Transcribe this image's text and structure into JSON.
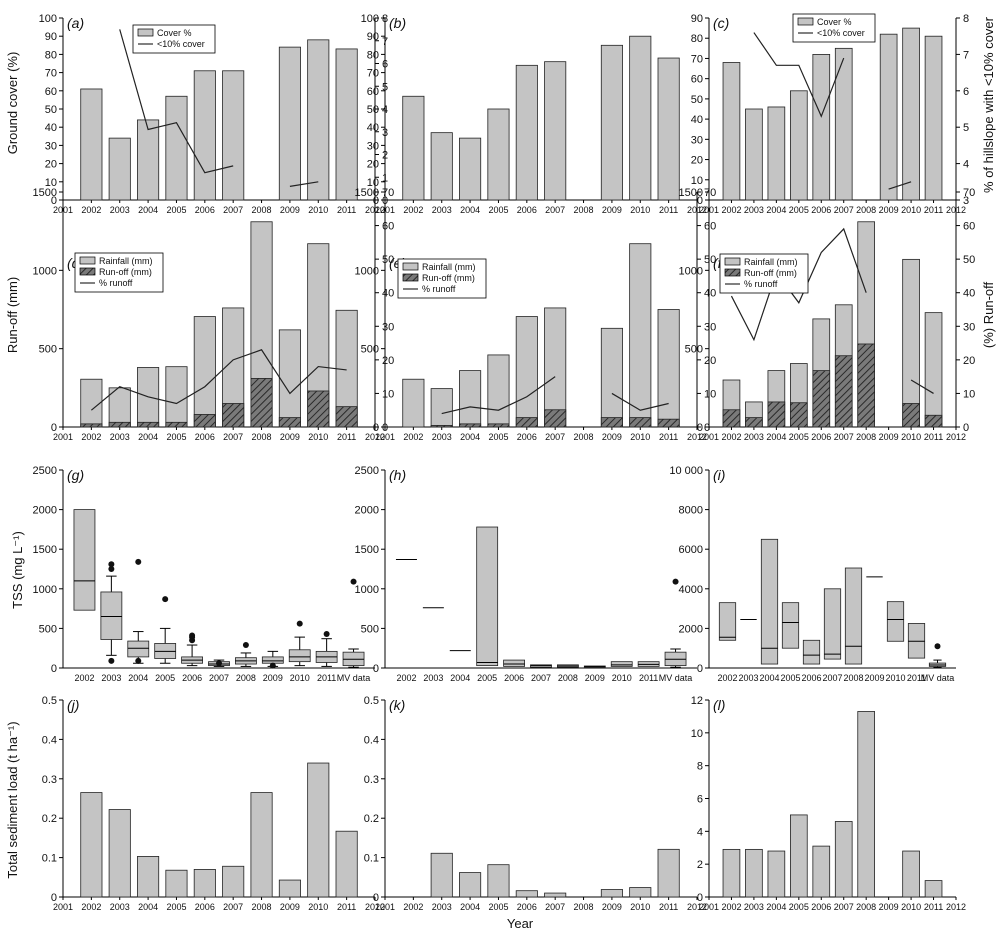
{
  "figure": {
    "xlabel_bottom": "Year",
    "row_ylabels": [
      "Ground cover (%)",
      "Run-off (mm)",
      "TSS (mg L⁻¹)",
      "Total sediment load (t ha⁻¹)"
    ],
    "row1_right_ylabel": "% of hillslope with <10% cover",
    "row2_right_ylabel": "(%) Run-off"
  },
  "colors": {
    "bar_fill": "#c4c4c4",
    "bar_stroke": "#222222",
    "runoff_fill": "#777777",
    "line": "#222222",
    "outlier": "#111111"
  },
  "chart_data": [
    {
      "panel": "(a)",
      "type": "bar",
      "xlim": [
        2001,
        2012
      ],
      "x_ticks": [
        "2001",
        "2002",
        "2003",
        "2004",
        "2005",
        "2006",
        "2007",
        "2008",
        "2009",
        "2010",
        "2011",
        "2012"
      ],
      "ylim": [
        0,
        100
      ],
      "y_ticks": [
        "0",
        "10",
        "20",
        "30",
        "40",
        "50",
        "60",
        "70",
        "80",
        "90",
        "100"
      ],
      "y2lim": [
        0,
        8
      ],
      "y2_ticks": [
        "0",
        "1",
        "2",
        "3",
        "4",
        "5",
        "6",
        "7",
        "8"
      ],
      "legend": [
        {
          "label": "Cover %",
          "kind": "bar"
        },
        {
          "label": "<10% cover",
          "kind": "line"
        }
      ],
      "categories": [
        2002,
        2003,
        2004,
        2005,
        2006,
        2007,
        2009,
        2010,
        2011
      ],
      "values": [
        61,
        34,
        44,
        57,
        71,
        71,
        84,
        88,
        83
      ],
      "line_segments": [
        {
          "x": [
            2003,
            2004,
            2005,
            2006,
            2007
          ],
          "y": [
            7.5,
            3.1,
            3.4,
            1.2,
            1.5
          ]
        },
        {
          "x": [
            2009,
            2010
          ],
          "y": [
            0.6,
            0.8
          ]
        }
      ]
    },
    {
      "panel": "(b)",
      "type": "bar",
      "xlim": [
        2001,
        2012
      ],
      "x_ticks": [
        "2001",
        "2002",
        "2003",
        "2004",
        "2005",
        "2006",
        "2007",
        "2008",
        "2009",
        "2010",
        "2011",
        "2012"
      ],
      "ylim": [
        0,
        100
      ],
      "y_ticks": [
        "0",
        "10",
        "20",
        "30",
        "40",
        "50",
        "60",
        "70",
        "80",
        "90",
        "100"
      ],
      "categories": [
        2002,
        2003,
        2004,
        2005,
        2006,
        2007,
        2009,
        2010,
        2011
      ],
      "values": [
        57,
        37,
        34,
        50,
        74,
        76,
        85,
        90,
        78
      ]
    },
    {
      "panel": "(c)",
      "type": "bar",
      "xlim": [
        2001,
        2012
      ],
      "x_ticks": [
        "2001",
        "2002",
        "2003",
        "2004",
        "2005",
        "2006",
        "2007",
        "2008",
        "2009",
        "2010",
        "2011",
        "2012"
      ],
      "ylim": [
        0,
        90
      ],
      "y_ticks": [
        "0",
        "10",
        "20",
        "30",
        "40",
        "50",
        "60",
        "70",
        "80",
        "90"
      ],
      "y2lim": [
        3,
        8
      ],
      "y2_ticks": [
        "3",
        "4",
        "5",
        "6",
        "7",
        "8"
      ],
      "legend": [
        {
          "label": "Cover %",
          "kind": "bar"
        },
        {
          "label": "<10% cover",
          "kind": "line"
        }
      ],
      "categories": [
        2002,
        2003,
        2004,
        2005,
        2006,
        2007,
        2009,
        2010,
        2011
      ],
      "values": [
        68,
        45,
        46,
        54,
        72,
        75,
        82,
        85,
        81
      ],
      "line_segments": [
        {
          "x": [
            2003,
            2004,
            2005,
            2006,
            2007
          ],
          "y": [
            7.6,
            6.7,
            6.7,
            5.3,
            6.9
          ]
        },
        {
          "x": [
            2009,
            2010
          ],
          "y": [
            3.3,
            3.5
          ]
        }
      ]
    },
    {
      "panel": "(d)",
      "type": "bar",
      "xlim": [
        2001,
        2012
      ],
      "x_ticks": [
        "2001",
        "2002",
        "2003",
        "2004",
        "2005",
        "2006",
        "2007",
        "2008",
        "2009",
        "2010",
        "2011",
        "2012"
      ],
      "ylim": [
        0,
        1500
      ],
      "y_ticks": [
        "0",
        "500",
        "1000",
        "1500"
      ],
      "y2lim": [
        0,
        70
      ],
      "y2_ticks": [
        "0",
        "10",
        "20",
        "30",
        "40",
        "50",
        "60",
        "70"
      ],
      "legend": [
        {
          "label": "Rainfall (mm)",
          "kind": "bar"
        },
        {
          "label": "Run-off (mm)",
          "kind": "hatch"
        },
        {
          "label": "% runoff",
          "kind": "line"
        }
      ],
      "categories": [
        2002,
        2003,
        2004,
        2005,
        2006,
        2007,
        2008,
        2009,
        2010,
        2011
      ],
      "series": [
        {
          "name": "Rainfall (mm)",
          "values": [
            305,
            250,
            380,
            385,
            705,
            760,
            1310,
            620,
            1170,
            745
          ]
        },
        {
          "name": "Run-off (mm)",
          "values": [
            20,
            30,
            30,
            30,
            80,
            150,
            310,
            60,
            230,
            130
          ]
        }
      ],
      "line_segments": [
        {
          "x": [
            2002,
            2003,
            2004,
            2005,
            2006,
            2007,
            2008,
            2009,
            2010,
            2011
          ],
          "y": [
            5,
            12,
            9,
            7,
            12,
            20,
            23,
            10,
            18,
            17
          ]
        }
      ]
    },
    {
      "panel": "(e)",
      "type": "bar",
      "xlim": [
        2001,
        2012
      ],
      "x_ticks": [
        "2001",
        "2002",
        "2003",
        "2004",
        "2005",
        "2006",
        "2007",
        "2008",
        "2009",
        "2010",
        "2011",
        "2012"
      ],
      "ylim": [
        0,
        1500
      ],
      "y_ticks": [
        "0",
        "500",
        "1000",
        "1500"
      ],
      "y2lim": [
        0,
        70
      ],
      "y2_ticks": [
        "0",
        "10",
        "20",
        "30",
        "40",
        "50",
        "60",
        "70"
      ],
      "legend": [
        {
          "label": "Rainfall (mm)",
          "kind": "bar"
        },
        {
          "label": "Run-off (mm)",
          "kind": "hatch"
        },
        {
          "label": "% runoff",
          "kind": "line"
        }
      ],
      "categories": [
        2002,
        2003,
        2004,
        2005,
        2006,
        2007,
        2009,
        2010,
        2011
      ],
      "series": [
        {
          "name": "Rainfall (mm)",
          "values": [
            305,
            245,
            360,
            460,
            705,
            760,
            630,
            1170,
            750
          ]
        },
        {
          "name": "Run-off (mm)",
          "values": [
            0,
            10,
            20,
            20,
            60,
            110,
            60,
            60,
            50
          ]
        }
      ],
      "line_segments": [
        {
          "x": [
            2003,
            2004,
            2005,
            2006,
            2007
          ],
          "y": [
            4,
            6,
            5,
            9,
            15
          ]
        },
        {
          "x": [
            2009,
            2010,
            2011
          ],
          "y": [
            10,
            5,
            7
          ]
        }
      ]
    },
    {
      "panel": "(f)",
      "type": "bar",
      "xlim": [
        2001,
        2012
      ],
      "x_ticks": [
        "2001",
        "2002",
        "2003",
        "2004",
        "2005",
        "2006",
        "2007",
        "2008",
        "2009",
        "2010",
        "2011",
        "2012"
      ],
      "ylim": [
        0,
        1500
      ],
      "y_ticks": [
        "0",
        "500",
        "1000",
        "1500"
      ],
      "y2lim": [
        0,
        70
      ],
      "y2_ticks": [
        "0",
        "10",
        "20",
        "30",
        "40",
        "50",
        "60",
        "70"
      ],
      "legend": [
        {
          "label": "Rainfall (mm)",
          "kind": "bar"
        },
        {
          "label": "Run-off (mm)",
          "kind": "hatch"
        },
        {
          "label": "% runoff",
          "kind": "line"
        }
      ],
      "categories": [
        2002,
        2003,
        2004,
        2005,
        2006,
        2007,
        2008,
        2010,
        2011
      ],
      "series": [
        {
          "name": "Rainfall (mm)",
          "values": [
            300,
            160,
            360,
            405,
            690,
            780,
            1310,
            1070,
            730
          ]
        },
        {
          "name": "Run-off (mm)",
          "values": [
            110,
            60,
            160,
            155,
            360,
            455,
            530,
            150,
            75
          ]
        }
      ],
      "line_segments": [
        {
          "x": [
            2002,
            2003,
            2004,
            2005,
            2006,
            2007,
            2008
          ],
          "y": [
            39,
            26,
            46,
            37,
            52,
            59,
            40
          ]
        },
        {
          "x": [
            2010,
            2011
          ],
          "y": [
            14,
            10
          ]
        }
      ]
    },
    {
      "panel": "(g)",
      "type": "box",
      "categories": [
        "2002",
        "2003",
        "2004",
        "2005",
        "2006",
        "2007",
        "2008",
        "2009",
        "2010",
        "2011",
        "MV data"
      ],
      "ylim": [
        0,
        2500
      ],
      "y_ticks": [
        "0",
        "500",
        "1000",
        "1500",
        "2000",
        "2500"
      ],
      "boxes": [
        {
          "q1": 730,
          "med": 1100,
          "q3": 2000,
          "whisk": null,
          "out": []
        },
        {
          "q1": 360,
          "med": 650,
          "q3": 960,
          "whisk": [
            160,
            1160
          ],
          "out": [
            90,
            1250,
            1310
          ]
        },
        {
          "q1": 140,
          "med": 250,
          "q3": 340,
          "whisk": [
            60,
            460
          ],
          "out": [
            90,
            1340
          ]
        },
        {
          "q1": 120,
          "med": 210,
          "q3": 310,
          "whisk": [
            60,
            500
          ],
          "out": [
            870
          ]
        },
        {
          "q1": 60,
          "med": 100,
          "q3": 140,
          "whisk": [
            30,
            290
          ],
          "out": [
            350,
            390,
            410
          ]
        },
        {
          "q1": 30,
          "med": 50,
          "q3": 80,
          "whisk": [
            20,
            100
          ],
          "out": [
            60
          ]
        },
        {
          "q1": 50,
          "med": 90,
          "q3": 130,
          "whisk": [
            20,
            190
          ],
          "out": [
            290
          ]
        },
        {
          "q1": 60,
          "med": 90,
          "q3": 140,
          "whisk": [
            20,
            210
          ],
          "out": [
            30
          ]
        },
        {
          "q1": 80,
          "med": 140,
          "q3": 230,
          "whisk": [
            30,
            390
          ],
          "out": [
            560
          ]
        },
        {
          "q1": 70,
          "med": 140,
          "q3": 210,
          "whisk": [
            20,
            370
          ],
          "out": [
            430
          ]
        },
        {
          "q1": 30,
          "med": 110,
          "q3": 200,
          "whisk": [
            10,
            240
          ],
          "out": [
            1090
          ]
        }
      ]
    },
    {
      "panel": "(h)",
      "type": "box",
      "categories": [
        "2002",
        "2003",
        "2004",
        "2005",
        "2006",
        "2007",
        "2008",
        "2009",
        "2010",
        "2011",
        "MV data"
      ],
      "ylim": [
        0,
        2500
      ],
      "y_ticks": [
        "0",
        "500",
        "1000",
        "1500",
        "2000",
        "2500"
      ],
      "boxes": [
        {
          "q1": 1370,
          "med": 1370,
          "q3": 1370,
          "whisk": null,
          "out": []
        },
        {
          "q1": 760,
          "med": 760,
          "q3": 760,
          "whisk": null,
          "out": []
        },
        {
          "q1": 220,
          "med": 220,
          "q3": 220,
          "whisk": null,
          "out": []
        },
        {
          "q1": 30,
          "med": 70,
          "q3": 1780,
          "whisk": null,
          "out": []
        },
        {
          "q1": 20,
          "med": 50,
          "q3": 100,
          "whisk": null,
          "out": []
        },
        {
          "q1": 10,
          "med": 30,
          "q3": 40,
          "whisk": null,
          "out": []
        },
        {
          "q1": 10,
          "med": 25,
          "q3": 40,
          "whisk": null,
          "out": []
        },
        {
          "q1": 15,
          "med": 20,
          "q3": 25,
          "whisk": null,
          "out": []
        },
        {
          "q1": 20,
          "med": 40,
          "q3": 80,
          "whisk": null,
          "out": []
        },
        {
          "q1": 20,
          "med": 45,
          "q3": 80,
          "whisk": null,
          "out": []
        },
        {
          "q1": 30,
          "med": 110,
          "q3": 200,
          "whisk": [
            10,
            240
          ],
          "out": [
            1090
          ]
        }
      ]
    },
    {
      "panel": "(i)",
      "type": "box",
      "categories": [
        "2002",
        "2003",
        "2004",
        "2005",
        "2006",
        "2007",
        "2008",
        "2009",
        "2010",
        "2011",
        "MV data"
      ],
      "ylim": [
        0,
        10000
      ],
      "y_ticks": [
        "0",
        "2000",
        "4000",
        "6000",
        "8000",
        "10 000"
      ],
      "boxes": [
        {
          "q1": 1400,
          "med": 1550,
          "q3": 3300,
          "whisk": null,
          "out": []
        },
        {
          "q1": 2450,
          "med": 2450,
          "q3": 2450,
          "whisk": null,
          "out": []
        },
        {
          "q1": 200,
          "med": 1000,
          "q3": 6500,
          "whisk": null,
          "out": []
        },
        {
          "q1": 1000,
          "med": 2300,
          "q3": 3300,
          "whisk": null,
          "out": []
        },
        {
          "q1": 200,
          "med": 650,
          "q3": 1400,
          "whisk": null,
          "out": []
        },
        {
          "q1": 450,
          "med": 700,
          "q3": 4000,
          "whisk": null,
          "out": []
        },
        {
          "q1": 200,
          "med": 1100,
          "q3": 5050,
          "whisk": null,
          "out": []
        },
        {
          "q1": 4600,
          "med": 4600,
          "q3": 4600,
          "whisk": null,
          "out": []
        },
        {
          "q1": 1350,
          "med": 2450,
          "q3": 3350,
          "whisk": null,
          "out": []
        },
        {
          "q1": 500,
          "med": 1350,
          "q3": 2250,
          "whisk": null,
          "out": []
        },
        {
          "q1": 80,
          "med": 150,
          "q3": 250,
          "whisk": [
            30,
            400
          ],
          "out": [
            1100
          ]
        }
      ]
    },
    {
      "panel": "(j)",
      "type": "bar",
      "xlim": [
        2001,
        2012
      ],
      "x_ticks": [
        "2001",
        "2002",
        "2003",
        "2004",
        "2005",
        "2006",
        "2007",
        "2008",
        "2009",
        "2010",
        "2011",
        "2012"
      ],
      "ylim": [
        0,
        0.5
      ],
      "y_ticks": [
        "0",
        "0.1",
        "0.2",
        "0.3",
        "0.4",
        "0.5"
      ],
      "categories": [
        2002,
        2003,
        2004,
        2005,
        2006,
        2007,
        2008,
        2009,
        2010,
        2011
      ],
      "values": [
        0.265,
        0.222,
        0.103,
        0.068,
        0.07,
        0.078,
        0.265,
        0.043,
        0.34,
        0.167
      ]
    },
    {
      "panel": "(k)",
      "type": "bar",
      "xlim": [
        2001,
        2012
      ],
      "x_ticks": [
        "2001",
        "2002",
        "2003",
        "2004",
        "2005",
        "2006",
        "2007",
        "2008",
        "2009",
        "2010",
        "2011",
        "2012"
      ],
      "ylim": [
        0,
        0.5
      ],
      "y_ticks": [
        "0",
        "0.1",
        "0.2",
        "0.3",
        "0.4",
        "0.5"
      ],
      "categories": [
        2003,
        2004,
        2005,
        2006,
        2007,
        2009,
        2010,
        2011
      ],
      "values": [
        0.111,
        0.062,
        0.082,
        0.016,
        0.01,
        0.019,
        0.024,
        0.121
      ]
    },
    {
      "panel": "(l)",
      "type": "bar",
      "xlim": [
        2001,
        2012
      ],
      "x_ticks": [
        "2001",
        "2002",
        "2003",
        "2004",
        "2005",
        "2006",
        "2007",
        "2008",
        "2009",
        "2010",
        "2011",
        "2012"
      ],
      "ylim": [
        0,
        12
      ],
      "y_ticks": [
        "0",
        "2",
        "4",
        "6",
        "8",
        "10",
        "12"
      ],
      "categories": [
        2002,
        2003,
        2004,
        2005,
        2006,
        2007,
        2008,
        2010,
        2011
      ],
      "values": [
        2.9,
        2.9,
        2.8,
        5.0,
        3.1,
        4.6,
        11.3,
        2.8,
        1.0
      ]
    }
  ]
}
